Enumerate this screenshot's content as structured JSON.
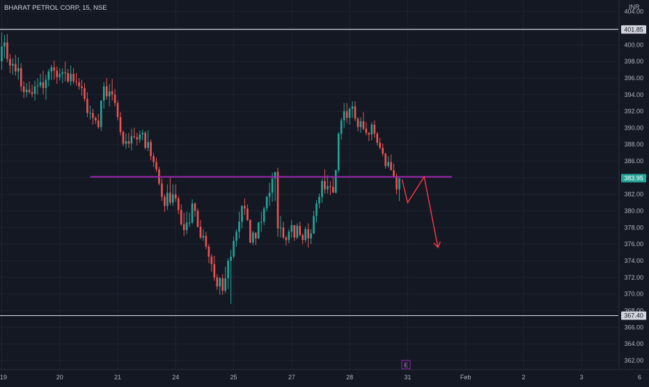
{
  "header": {
    "symbol_title": "BHARAT PETROL CORP, 15, NSE"
  },
  "currency_label": "INR",
  "earnings_marker": "E",
  "colors": {
    "background": "#141823",
    "up": "#26a69a",
    "down": "#ef5350",
    "hline": "#d1d4dc",
    "resistance": "#9c27b0",
    "projection": "#f23645",
    "text": "#b2b5be",
    "last_price_bg": "#26a69a"
  },
  "chart_data": {
    "type": "candlestick",
    "title": "BHARAT PETROL CORP, 15, NSE",
    "interval": "15",
    "exchange": "NSE",
    "currency": "INR",
    "ylim": [
      360.9,
      405.4
    ],
    "y_ticks": [
      "404.00",
      "402.00",
      "400.00",
      "398.00",
      "396.00",
      "394.00",
      "392.00",
      "390.00",
      "388.00",
      "386.00",
      "384.00",
      "382.00",
      "380.00",
      "378.00",
      "376.00",
      "374.00",
      "372.00",
      "370.00",
      "368.00",
      "366.00",
      "364.00",
      "362.00"
    ],
    "x_ticks": [
      {
        "label": "19",
        "bar": 0
      },
      {
        "label": "20",
        "bar": 21
      },
      {
        "label": "21",
        "bar": 42
      },
      {
        "label": "24",
        "bar": 63
      },
      {
        "label": "25",
        "bar": 84
      },
      {
        "label": "27",
        "bar": 105
      },
      {
        "label": "28",
        "bar": 126
      },
      {
        "label": "31",
        "bar": 147
      },
      {
        "label": "Feb",
        "bar": 168
      },
      {
        "label": "2",
        "bar": 189
      },
      {
        "label": "3",
        "bar": 210
      },
      {
        "label": "6",
        "bar": 231
      }
    ],
    "price_labels": [
      {
        "label": "401.85",
        "value": 401.85,
        "style": "level"
      },
      {
        "label": "383.95",
        "value": 383.95,
        "style": "last"
      },
      {
        "label": "367.40",
        "value": 367.4,
        "style": "level"
      }
    ],
    "candles": [
      [
        398.0,
        401.5,
        397.0,
        399.8
      ],
      [
        399.8,
        401.2,
        398.4,
        400.3
      ],
      [
        400.3,
        401.3,
        397.9,
        398.3
      ],
      [
        398.3,
        398.9,
        396.6,
        397.5
      ],
      [
        397.5,
        398.4,
        396.4,
        397.7
      ],
      [
        397.7,
        398.8,
        396.3,
        396.8
      ],
      [
        396.8,
        398.5,
        395.8,
        397.2
      ],
      [
        397.2,
        397.8,
        394.4,
        395.0
      ],
      [
        395.0,
        395.6,
        393.6,
        394.3
      ],
      [
        394.3,
        395.4,
        393.7,
        394.6
      ],
      [
        394.6,
        395.6,
        394.1,
        394.3
      ],
      [
        394.3,
        395.2,
        393.7,
        394.1
      ],
      [
        394.1,
        395.7,
        393.3,
        395.0
      ],
      [
        395.0,
        396.0,
        394.0,
        395.1
      ],
      [
        395.1,
        396.5,
        394.8,
        395.5
      ],
      [
        395.5,
        396.9,
        394.0,
        394.8
      ],
      [
        394.8,
        396.4,
        393.4,
        395.8
      ],
      [
        395.8,
        397.1,
        395.0,
        396.8
      ],
      [
        396.8,
        397.6,
        395.8,
        397.3
      ],
      [
        397.3,
        398.1,
        395.8,
        396.9
      ],
      [
        396.9,
        397.4,
        395.3,
        396.1
      ],
      [
        396.1,
        397.2,
        395.7,
        396.5
      ],
      [
        396.5,
        397.2,
        395.4,
        396.7
      ],
      [
        396.7,
        398.0,
        395.6,
        396.6
      ],
      [
        396.6,
        397.1,
        395.4,
        395.6
      ],
      [
        395.6,
        397.5,
        395.1,
        396.5
      ],
      [
        396.5,
        397.2,
        395.3,
        395.6
      ],
      [
        395.6,
        396.6,
        395.1,
        395.5
      ],
      [
        395.5,
        396.0,
        394.6,
        395.0
      ],
      [
        395.0,
        395.8,
        393.9,
        394.8
      ],
      [
        394.8,
        395.4,
        393.2,
        393.5
      ],
      [
        393.5,
        394.3,
        391.3,
        391.8
      ],
      [
        391.8,
        392.7,
        391.0,
        391.8
      ],
      [
        391.8,
        392.3,
        390.4,
        391.2
      ],
      [
        391.2,
        391.4,
        390.5,
        390.9
      ],
      [
        390.9,
        391.7,
        389.9,
        390.1
      ],
      [
        390.1,
        393.3,
        389.6,
        393.3
      ],
      [
        393.3,
        395.5,
        392.3,
        395.0
      ],
      [
        395.0,
        396.0,
        393.4,
        393.8
      ],
      [
        393.8,
        395.3,
        392.6,
        394.4
      ],
      [
        394.4,
        395.9,
        393.3,
        394.0
      ],
      [
        394.0,
        394.7,
        392.6,
        393.0
      ],
      [
        393.0,
        393.3,
        390.9,
        391.3
      ],
      [
        391.3,
        391.9,
        389.1,
        389.5
      ],
      [
        389.5,
        389.7,
        387.8,
        388.1
      ],
      [
        388.1,
        389.3,
        387.5,
        388.4
      ],
      [
        388.4,
        389.4,
        387.6,
        388.1
      ],
      [
        388.1,
        389.9,
        387.3,
        389.0
      ],
      [
        389.0,
        390.0,
        388.7,
        388.9
      ],
      [
        388.9,
        389.4,
        387.9,
        388.6
      ],
      [
        388.6,
        389.7,
        388.2,
        389.2
      ],
      [
        389.2,
        389.8,
        388.5,
        389.4
      ],
      [
        389.4,
        389.6,
        387.4,
        387.6
      ],
      [
        387.6,
        389.7,
        387.2,
        388.3
      ],
      [
        388.3,
        388.6,
        386.1,
        386.6
      ],
      [
        386.6,
        387.0,
        385.3,
        385.9
      ],
      [
        385.9,
        386.4,
        384.7,
        385.0
      ],
      [
        385.0,
        385.3,
        383.1,
        383.3
      ],
      [
        383.3,
        383.9,
        381.2,
        381.7
      ],
      [
        381.7,
        382.0,
        379.9,
        380.6
      ],
      [
        380.6,
        383.2,
        380.1,
        382.2
      ],
      [
        382.2,
        384.1,
        380.7,
        381.0
      ],
      [
        381.0,
        383.2,
        380.6,
        382.0
      ],
      [
        382.0,
        383.2,
        381.1,
        381.5
      ],
      [
        381.5,
        381.8,
        379.6,
        380.1
      ],
      [
        380.1,
        380.8,
        378.2,
        378.4
      ],
      [
        378.4,
        379.8,
        377.0,
        377.7
      ],
      [
        377.7,
        379.9,
        377.2,
        378.6
      ],
      [
        378.6,
        379.8,
        378.1,
        378.6
      ],
      [
        378.6,
        381.4,
        378.4,
        380.9
      ],
      [
        380.9,
        381.0,
        379.3,
        380.0
      ],
      [
        380.0,
        380.3,
        378.0,
        378.1
      ],
      [
        378.1,
        378.9,
        376.6,
        376.8
      ],
      [
        376.8,
        377.8,
        376.4,
        377.0
      ],
      [
        377.0,
        377.5,
        375.4,
        375.7
      ],
      [
        375.7,
        376.0,
        373.7,
        374.5
      ],
      [
        374.5,
        374.8,
        372.7,
        373.6
      ],
      [
        373.6,
        374.6,
        371.6,
        372.0
      ],
      [
        372.0,
        372.4,
        370.5,
        370.9
      ],
      [
        370.9,
        372.1,
        369.9,
        371.9
      ],
      [
        371.9,
        372.4,
        369.9,
        370.4
      ],
      [
        370.4,
        373.3,
        370.1,
        371.9
      ],
      [
        371.9,
        374.3,
        370.6,
        374.0
      ],
      [
        374.0,
        375.3,
        368.8,
        374.5
      ],
      [
        374.5,
        376.9,
        374.3,
        376.4
      ],
      [
        376.4,
        377.8,
        375.7,
        377.5
      ],
      [
        377.5,
        379.9,
        376.7,
        378.7
      ],
      [
        378.7,
        380.7,
        377.9,
        380.6
      ],
      [
        380.6,
        381.5,
        379.5,
        380.3
      ],
      [
        380.3,
        380.8,
        378.8,
        378.9
      ],
      [
        378.9,
        379.0,
        376.1,
        376.2
      ],
      [
        376.2,
        377.6,
        375.9,
        377.4
      ],
      [
        377.4,
        377.4,
        375.9,
        376.7
      ],
      [
        376.7,
        378.7,
        376.6,
        378.6
      ],
      [
        378.6,
        379.9,
        377.5,
        378.7
      ],
      [
        378.7,
        380.5,
        378.3,
        380.3
      ],
      [
        380.3,
        381.8,
        379.9,
        381.7
      ],
      [
        381.7,
        383.4,
        380.6,
        382.2
      ],
      [
        382.2,
        384.6,
        381.1,
        383.9
      ],
      [
        383.9,
        384.7,
        381.2,
        384.7
      ],
      [
        384.7,
        385.2,
        376.9,
        377.9
      ],
      [
        377.9,
        379.4,
        376.8,
        378.0
      ],
      [
        378.0,
        378.7,
        376.6,
        376.8
      ],
      [
        376.8,
        377.0,
        375.8,
        376.5
      ],
      [
        376.5,
        377.8,
        376.1,
        377.5
      ],
      [
        377.5,
        378.9,
        376.8,
        378.3
      ],
      [
        378.3,
        378.3,
        376.4,
        376.8
      ],
      [
        376.8,
        378.5,
        376.6,
        378.2
      ],
      [
        378.2,
        378.7,
        376.9,
        377.1
      ],
      [
        377.1,
        377.3,
        376.0,
        376.5
      ],
      [
        376.5,
        378.1,
        376.2,
        377.8
      ],
      [
        377.8,
        378.5,
        375.6,
        376.7
      ],
      [
        376.7,
        377.8,
        376.0,
        377.3
      ],
      [
        377.3,
        380.0,
        377.2,
        379.4
      ],
      [
        379.4,
        381.3,
        378.6,
        380.9
      ],
      [
        380.9,
        382.1,
        380.3,
        381.7
      ],
      [
        381.7,
        383.9,
        381.0,
        383.6
      ],
      [
        383.6,
        385.0,
        382.1,
        382.6
      ],
      [
        382.6,
        384.3,
        382.1,
        383.0
      ],
      [
        383.0,
        383.6,
        381.9,
        382.9
      ],
      [
        382.9,
        384.0,
        382.2,
        382.2
      ],
      [
        382.2,
        385.0,
        382.1,
        384.9
      ],
      [
        384.9,
        389.5,
        384.6,
        389.3
      ],
      [
        389.3,
        391.2,
        388.6,
        390.9
      ],
      [
        390.9,
        393.0,
        390.0,
        392.0
      ],
      [
        392.0,
        393.0,
        390.6,
        391.2
      ],
      [
        391.2,
        392.5,
        390.4,
        392.3
      ],
      [
        392.3,
        393.2,
        391.2,
        392.6
      ],
      [
        392.6,
        393.2,
        390.8,
        391.1
      ],
      [
        391.1,
        391.3,
        389.6,
        390.1
      ],
      [
        390.1,
        391.3,
        389.4,
        390.8
      ],
      [
        390.8,
        391.9,
        389.7,
        389.9
      ],
      [
        389.9,
        390.7,
        389.1,
        389.4
      ],
      [
        389.4,
        389.5,
        388.4,
        389.2
      ],
      [
        389.2,
        390.7,
        388.5,
        390.4
      ],
      [
        390.4,
        390.9,
        388.8,
        389.3
      ],
      [
        389.3,
        389.5,
        387.9,
        388.2
      ],
      [
        388.2,
        388.8,
        387.4,
        387.6
      ],
      [
        387.6,
        388.1,
        386.6,
        386.9
      ],
      [
        386.9,
        387.0,
        385.1,
        385.4
      ],
      [
        385.4,
        386.6,
        385.2,
        385.9
      ],
      [
        385.9,
        386.8,
        384.9,
        384.9
      ],
      [
        384.9,
        385.7,
        384.1,
        384.2
      ],
      [
        384.2,
        384.5,
        382.0,
        382.6
      ],
      [
        382.6,
        383.9,
        381.2,
        383.95
      ]
    ],
    "annotations": {
      "horizontal_levels": [
        401.85,
        367.4
      ],
      "resistance_line": {
        "price": 384.1,
        "from_bar": 32,
        "to_bar": 163
      },
      "projection_path": [
        {
          "bar": 145,
          "price": 383.8
        },
        {
          "bar": 147,
          "price": 381.0
        },
        {
          "bar": 153,
          "price": 384.1
        },
        {
          "bar": 158,
          "price": 375.6
        }
      ],
      "earnings_event_bar": 140
    }
  }
}
